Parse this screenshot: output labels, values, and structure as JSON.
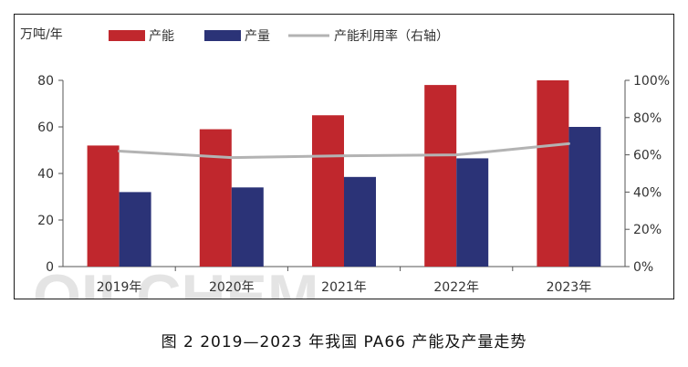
{
  "chart_data": {
    "type": "bar",
    "unit_label": "万吨/年",
    "categories": [
      "2019年",
      "2020年",
      "2021年",
      "2022年",
      "2023年"
    ],
    "series": [
      {
        "name": "产能",
        "kind": "bar",
        "color": "#c0272d",
        "values": [
          52,
          59,
          65,
          78,
          80
        ]
      },
      {
        "name": "产量",
        "kind": "bar",
        "color": "#2b3377",
        "values": [
          32,
          34,
          38.5,
          46.5,
          60
        ]
      },
      {
        "name": "产能利用率（右轴）",
        "kind": "line",
        "axis": "right",
        "color": "#b3b3b3",
        "values": [
          62,
          58.5,
          59.5,
          60,
          66
        ]
      }
    ],
    "y_left": {
      "ticks": [
        "0",
        "20",
        "40",
        "60",
        "80"
      ],
      "ylim": [
        0,
        80
      ]
    },
    "y_right": {
      "ticks": [
        "0%",
        "20%",
        "40%",
        "60%",
        "80%",
        "100%"
      ],
      "ylim": [
        0,
        100
      ]
    },
    "grid": false,
    "legend_position": "top"
  },
  "watermark": "OILCHEM",
  "caption": "图 2 2019—2023 年我国 PA66 产能及产量走势"
}
